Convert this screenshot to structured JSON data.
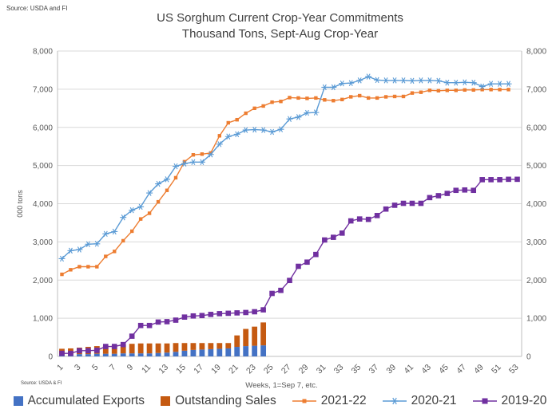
{
  "source_top": "Source: USDA and  FI",
  "source_bottom": "Source: USDA & FI",
  "chart_data": {
    "type": "bar+line",
    "title": "US Sorghum Current Crop-Year Commitments",
    "subtitle": "Thousand Tons, Sept-Aug Crop-Year",
    "ylabel": "000 tons",
    "xlabel": "Weeks, 1=Sep 7, etc.",
    "ylim": [
      0,
      8000
    ],
    "yticks": [
      0,
      1000,
      2000,
      3000,
      4000,
      5000,
      6000,
      7000,
      8000
    ],
    "ytick_labels": [
      "0",
      "1,000",
      "2,000",
      "3,000",
      "4,000",
      "5,000",
      "6,000",
      "7,000",
      "8,000"
    ],
    "x": [
      1,
      2,
      3,
      4,
      5,
      6,
      7,
      8,
      9,
      10,
      11,
      12,
      13,
      14,
      15,
      16,
      17,
      18,
      19,
      20,
      21,
      22,
      23,
      24,
      25,
      26,
      27,
      28,
      29,
      30,
      31,
      32,
      33,
      34,
      35,
      36,
      37,
      38,
      39,
      40,
      41,
      42,
      43,
      44,
      45,
      46,
      47,
      48,
      49,
      50,
      51,
      52,
      53
    ],
    "xtick_labels": [
      "1",
      "3",
      "5",
      "7",
      "9",
      "11",
      "13",
      "15",
      "17",
      "19",
      "21",
      "23",
      "25",
      "27",
      "29",
      "31",
      "33",
      "35",
      "37",
      "39",
      "41",
      "43",
      "45",
      "47",
      "49",
      "51",
      "53"
    ],
    "bar_series": [
      {
        "name": "Accumulated Exports",
        "color": "#4472C4",
        "values": [
          50,
          50,
          60,
          60,
          70,
          70,
          70,
          80,
          80,
          80,
          80,
          90,
          100,
          120,
          150,
          170,
          180,
          190,
          200,
          210,
          250,
          270,
          280,
          290
        ]
      },
      {
        "name": "Outstanding Sales",
        "color": "#C55A11",
        "values": [
          150,
          160,
          170,
          190,
          200,
          210,
          220,
          230,
          250,
          260,
          260,
          250,
          240,
          230,
          200,
          180,
          170,
          160,
          150,
          140,
          300,
          450,
          500,
          600
        ]
      }
    ],
    "line_series": [
      {
        "name": "2021-22",
        "color": "#ED7D31",
        "marker": "square",
        "values": [
          2150,
          2270,
          2350,
          2350,
          2350,
          2620,
          2750,
          3030,
          3280,
          3600,
          3750,
          4050,
          4350,
          4680,
          5100,
          5280,
          5300,
          5330,
          5780,
          6120,
          6200,
          6370,
          6500,
          6560,
          6660,
          6680,
          6780,
          6770,
          6760,
          6770,
          6720,
          6700,
          6730,
          6800,
          6830,
          6770,
          6770,
          6800,
          6810,
          6810,
          6900,
          6920,
          6970,
          6960,
          6970,
          6970,
          6980,
          6980,
          6990,
          6990,
          6990,
          6990,
          null
        ]
      },
      {
        "name": "2020-21",
        "color": "#5B9BD5",
        "marker": "star",
        "values": [
          2560,
          2770,
          2800,
          2940,
          2950,
          3210,
          3270,
          3640,
          3830,
          3920,
          4280,
          4520,
          4640,
          4980,
          5050,
          5090,
          5090,
          5290,
          5560,
          5760,
          5820,
          5930,
          5940,
          5930,
          5880,
          5950,
          6220,
          6270,
          6380,
          6390,
          7050,
          7050,
          7150,
          7160,
          7230,
          7330,
          7240,
          7230,
          7230,
          7230,
          7220,
          7230,
          7230,
          7220,
          7170,
          7170,
          7180,
          7170,
          7070,
          7140,
          7140,
          7140,
          null
        ]
      },
      {
        "name": "2019-20",
        "color": "#7030A0",
        "marker": "square",
        "values": [
          80,
          80,
          150,
          150,
          160,
          260,
          260,
          310,
          530,
          810,
          810,
          900,
          910,
          950,
          1030,
          1060,
          1070,
          1100,
          1120,
          1130,
          1140,
          1150,
          1170,
          1220,
          1650,
          1730,
          1990,
          2360,
          2470,
          2670,
          3050,
          3120,
          3230,
          3550,
          3600,
          3590,
          3690,
          3860,
          3960,
          4010,
          4010,
          4010,
          4160,
          4210,
          4270,
          4350,
          4360,
          4350,
          4630,
          4630,
          4630,
          4640,
          4640
        ]
      }
    ],
    "legend_position": "bottom",
    "grid": true
  }
}
